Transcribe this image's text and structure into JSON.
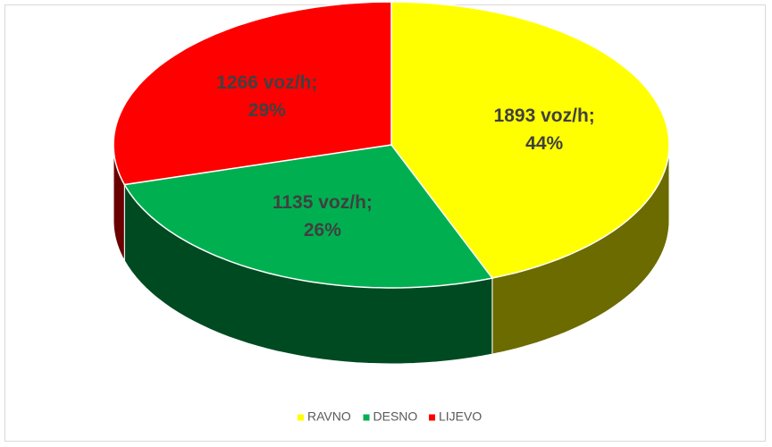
{
  "chart_data": {
    "type": "pie3d",
    "categories": [
      "RAVNO",
      "DESNO",
      "LIJEVO"
    ],
    "values": [
      1893,
      1135,
      1266
    ],
    "value_labels": [
      "1893 voz/h; 44%",
      "1135 voz/h; 26%",
      "1266 voz/h; 29%"
    ],
    "colors": [
      "#ffff00",
      "#00b050",
      "#ff0000"
    ],
    "legend": "bottom"
  }
}
